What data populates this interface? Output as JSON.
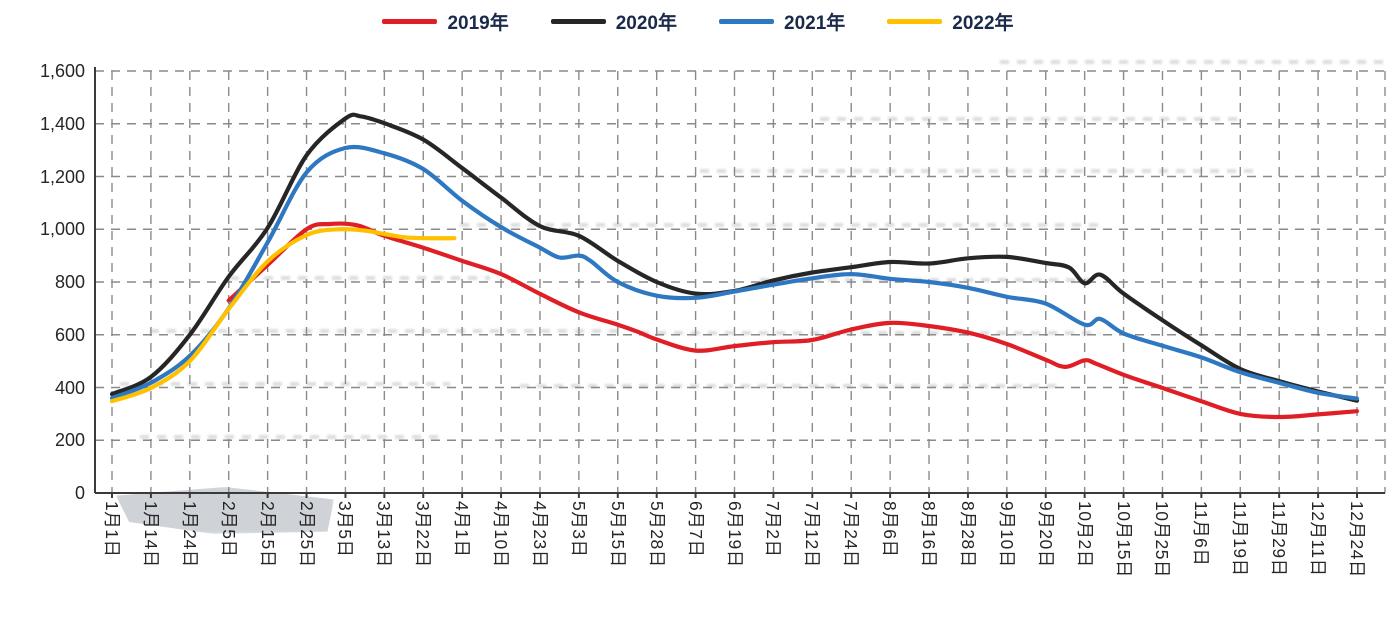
{
  "chart_data": {
    "type": "line",
    "title": "",
    "xlabel": "",
    "ylabel": "",
    "ylim": [
      0,
      1600
    ],
    "y_step": 200,
    "y_tick_labels": [
      "1,600",
      "1,400",
      "1,200",
      "1,000",
      "800",
      "600",
      "400",
      "200",
      "0"
    ],
    "grid": "dashed horizontal and vertical gridlines",
    "legend_position": "top-center",
    "categories": [
      "1月1日",
      "1月14日",
      "1月24日",
      "2月5日",
      "2月15日",
      "2月25日",
      "3月5日",
      "3月13日",
      "3月22日",
      "4月1日",
      "4月10日",
      "4月23日",
      "5月3日",
      "5月15日",
      "5月28日",
      "6月7日",
      "6月19日",
      "7月2日",
      "7月12日",
      "7月24日",
      "8月6日",
      "8月16日",
      "8月28日",
      "9月10日",
      "9月20日",
      "10月2日",
      "10月15日",
      "10月25日",
      "11月6日",
      "11月19日",
      "11月29日",
      "12月11日",
      "12月24日"
    ],
    "series": [
      {
        "name": "2019年",
        "color": "#e01e25",
        "points": [
          [
            3,
            730
          ],
          [
            4,
            865
          ],
          [
            5,
            1000
          ],
          [
            5.6,
            1020
          ],
          [
            6.3,
            1015
          ],
          [
            7,
            975
          ],
          [
            8,
            930
          ],
          [
            9,
            880
          ],
          [
            10,
            830
          ],
          [
            11,
            755
          ],
          [
            12,
            685
          ],
          [
            13,
            638
          ],
          [
            13.5,
            612
          ],
          [
            14,
            582
          ],
          [
            15,
            540
          ],
          [
            16,
            557
          ],
          [
            17,
            572
          ],
          [
            18,
            580
          ],
          [
            19,
            620
          ],
          [
            20,
            645
          ],
          [
            21,
            633
          ],
          [
            22,
            608
          ],
          [
            23,
            565
          ],
          [
            24,
            505
          ],
          [
            24.5,
            478
          ],
          [
            25,
            503
          ],
          [
            25.3,
            490
          ],
          [
            26,
            448
          ],
          [
            27,
            398
          ],
          [
            28,
            348
          ],
          [
            29,
            300
          ],
          [
            30,
            288
          ],
          [
            31,
            298
          ],
          [
            32,
            310
          ]
        ]
      },
      {
        "name": "2020年",
        "color": "#262626",
        "points": [
          [
            0,
            375
          ],
          [
            1,
            440
          ],
          [
            2,
            600
          ],
          [
            3,
            820
          ],
          [
            4,
            1005
          ],
          [
            5,
            1280
          ],
          [
            6,
            1420
          ],
          [
            6.4,
            1428
          ],
          [
            7,
            1402
          ],
          [
            8,
            1340
          ],
          [
            9,
            1232
          ],
          [
            10,
            1120
          ],
          [
            11,
            1012
          ],
          [
            12,
            975
          ],
          [
            13,
            880
          ],
          [
            14,
            800
          ],
          [
            15,
            756
          ],
          [
            16,
            766
          ],
          [
            17,
            806
          ],
          [
            18,
            836
          ],
          [
            19,
            856
          ],
          [
            20,
            876
          ],
          [
            21,
            870
          ],
          [
            22,
            890
          ],
          [
            23,
            895
          ],
          [
            24,
            872
          ],
          [
            24.6,
            855
          ],
          [
            25,
            795
          ],
          [
            25.4,
            828
          ],
          [
            26,
            756
          ],
          [
            27,
            655
          ],
          [
            28,
            560
          ],
          [
            29,
            470
          ],
          [
            30,
            424
          ],
          [
            31,
            385
          ],
          [
            32,
            350
          ]
        ]
      },
      {
        "name": "2021年",
        "color": "#2e78c2",
        "points": [
          [
            0,
            360
          ],
          [
            1,
            418
          ],
          [
            2,
            520
          ],
          [
            3,
            700
          ],
          [
            4,
            950
          ],
          [
            5,
            1215
          ],
          [
            6,
            1308
          ],
          [
            7,
            1288
          ],
          [
            8,
            1228
          ],
          [
            9,
            1108
          ],
          [
            10,
            1008
          ],
          [
            11,
            930
          ],
          [
            11.5,
            893
          ],
          [
            12,
            900
          ],
          [
            12.3,
            880
          ],
          [
            13,
            800
          ],
          [
            14,
            748
          ],
          [
            15,
            740
          ],
          [
            16,
            764
          ],
          [
            17,
            790
          ],
          [
            18,
            814
          ],
          [
            19,
            830
          ],
          [
            20,
            812
          ],
          [
            21,
            800
          ],
          [
            22,
            778
          ],
          [
            23,
            744
          ],
          [
            24,
            718
          ],
          [
            25,
            638
          ],
          [
            25.4,
            660
          ],
          [
            26,
            605
          ],
          [
            27,
            558
          ],
          [
            28,
            514
          ],
          [
            29,
            458
          ],
          [
            30,
            418
          ],
          [
            31,
            380
          ],
          [
            32,
            358
          ]
        ]
      },
      {
        "name": "2022年",
        "color": "#ffc000",
        "points": [
          [
            0,
            348
          ],
          [
            1,
            398
          ],
          [
            2,
            500
          ],
          [
            3,
            698
          ],
          [
            4,
            878
          ],
          [
            5,
            978
          ],
          [
            5.8,
            1000
          ],
          [
            6.5,
            995
          ],
          [
            7,
            982
          ],
          [
            7.5,
            970
          ],
          [
            8,
            966
          ],
          [
            8.8,
            966
          ]
        ]
      }
    ]
  }
}
